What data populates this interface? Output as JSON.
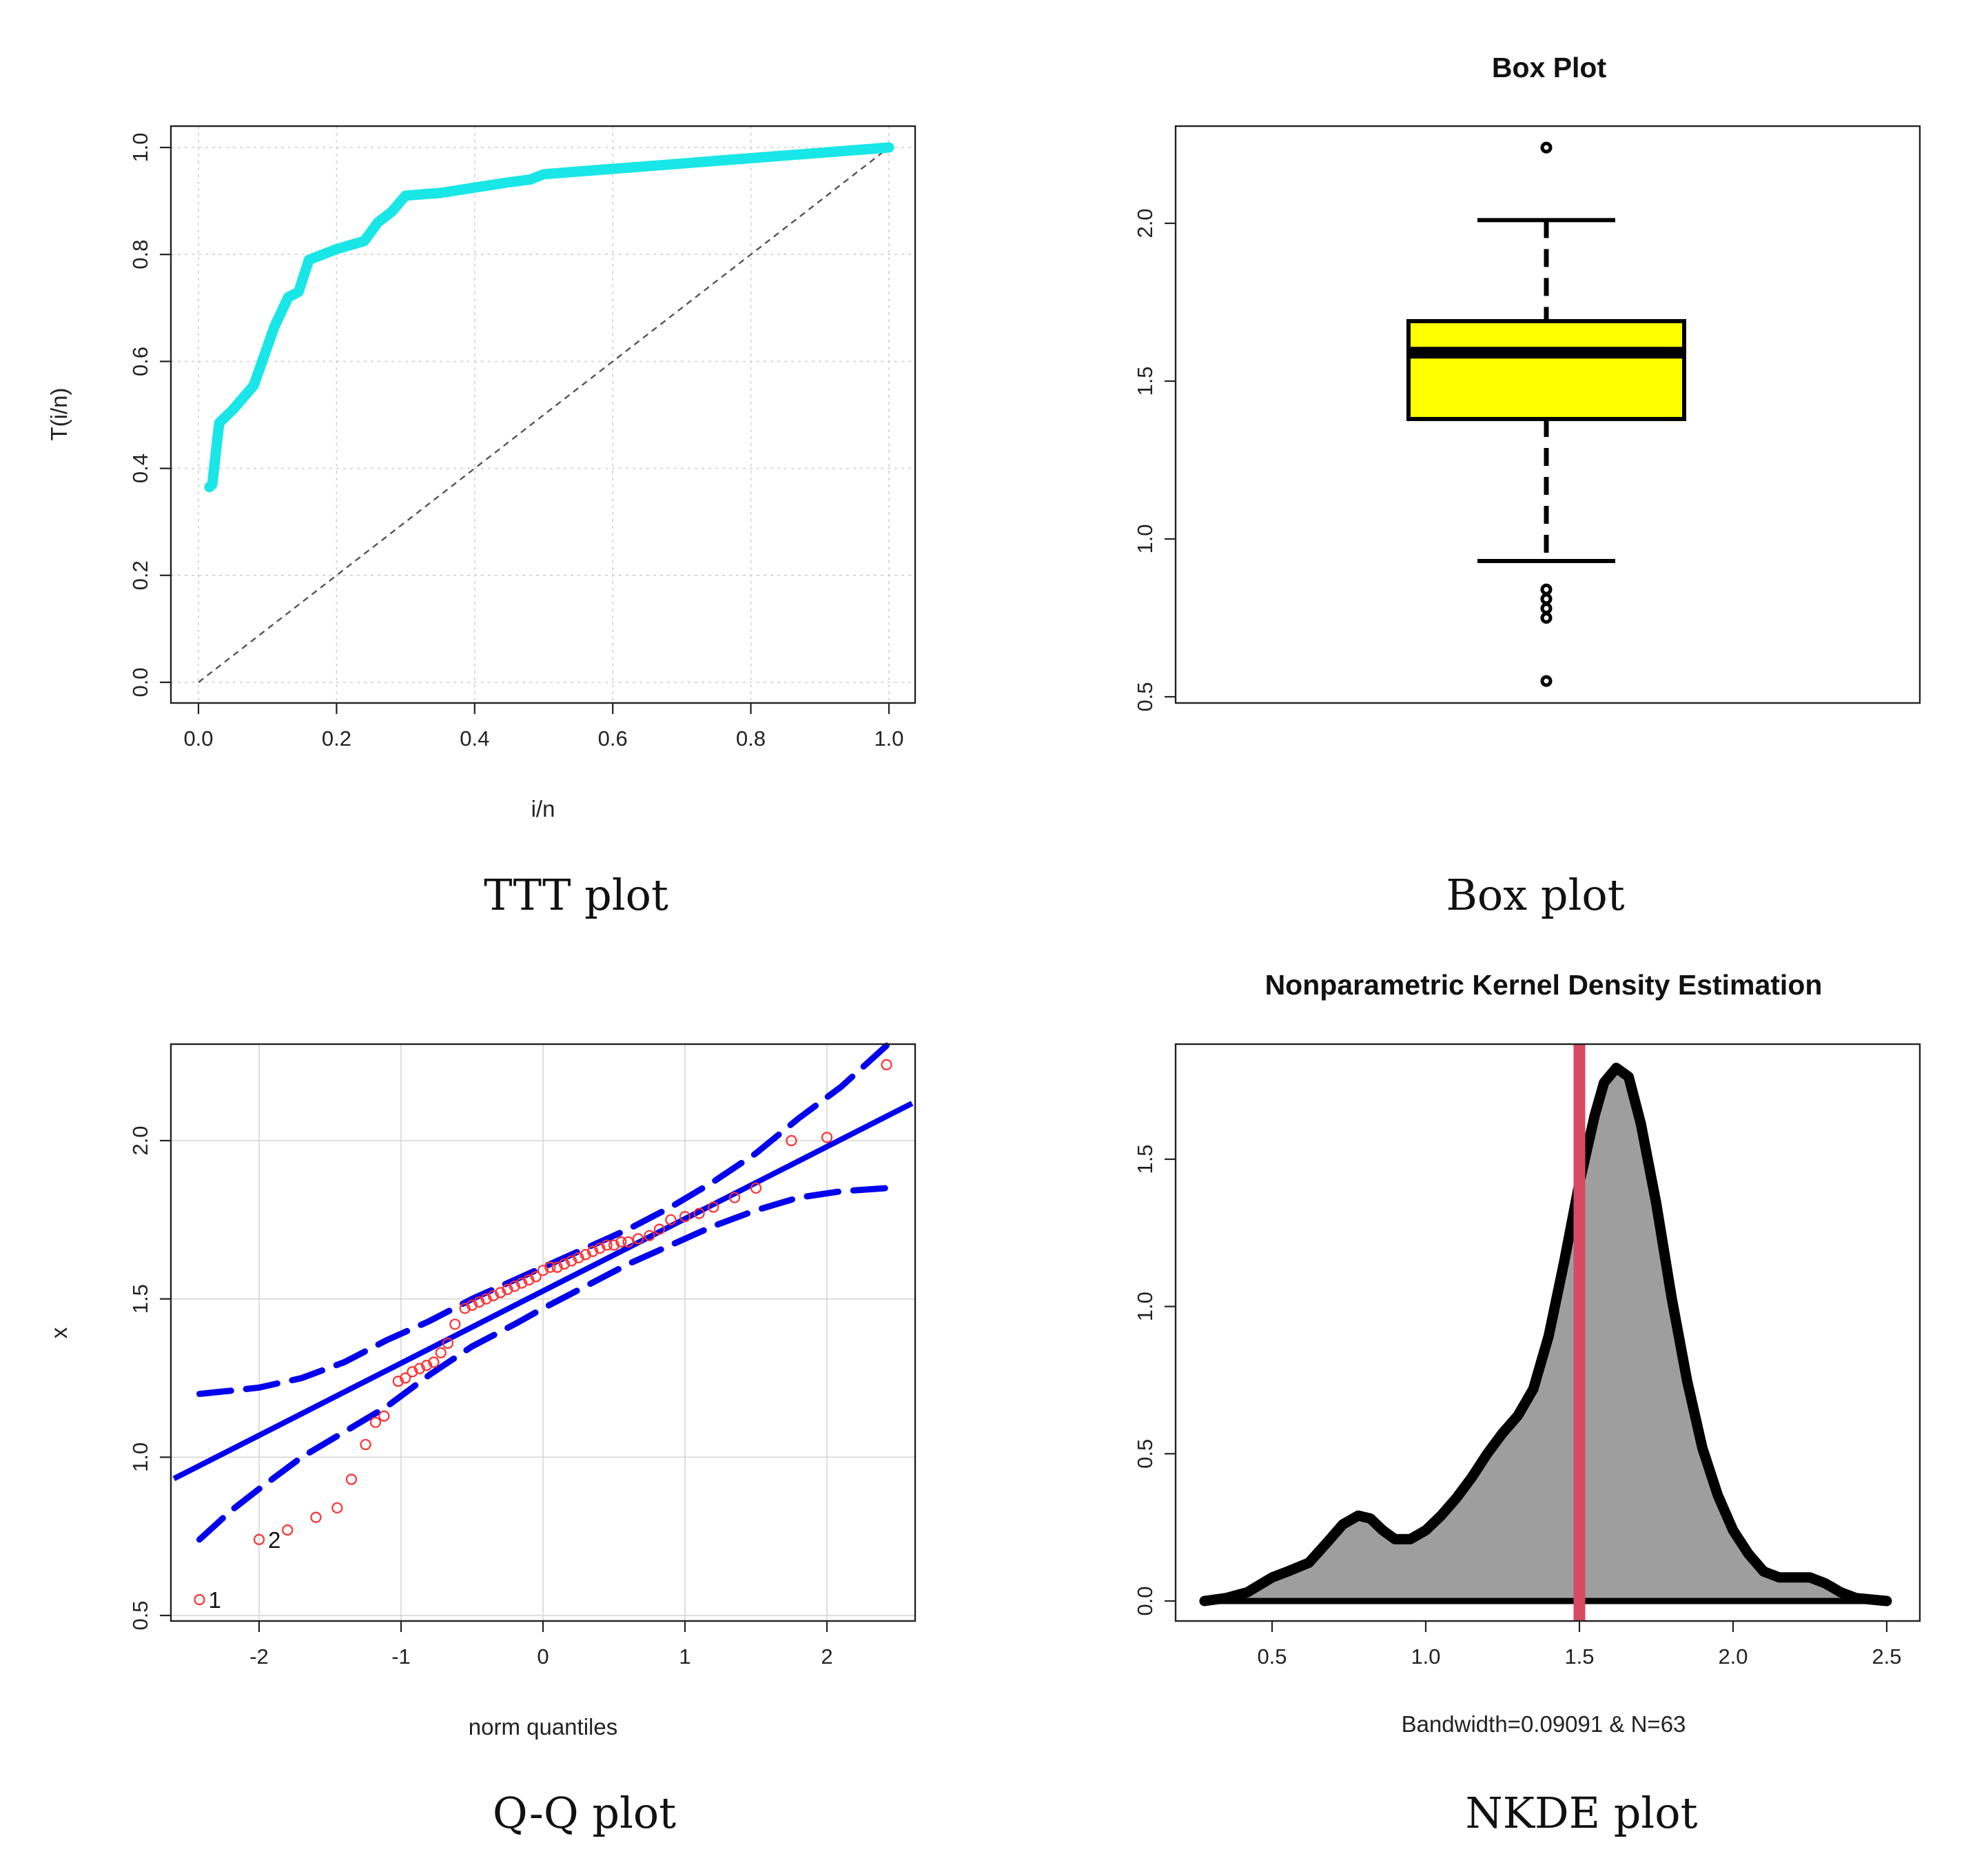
{
  "chart_data": [
    {
      "id": "ttt",
      "type": "line",
      "caption": "TTT plot",
      "title": "",
      "xlabel": "i/n",
      "ylabel": "T(i/n)",
      "xlim": [
        0,
        1
      ],
      "ylim": [
        0,
        1
      ],
      "xticks": [
        "0.0",
        "0.2",
        "0.4",
        "0.6",
        "0.8",
        "1.0"
      ],
      "yticks": [
        "0.0",
        "0.2",
        "0.4",
        "0.6",
        "0.8",
        "1.0"
      ],
      "grid": true,
      "line_color": "#19e6e6",
      "reference_line": {
        "from": [
          0,
          0
        ],
        "to": [
          1,
          1
        ],
        "style": "dashed"
      },
      "series": [
        {
          "name": "TTT",
          "x": [
            0.016,
            0.02,
            0.03,
            0.05,
            0.08,
            0.11,
            0.13,
            0.145,
            0.16,
            0.2,
            0.24,
            0.26,
            0.28,
            0.3,
            0.35,
            0.4,
            0.45,
            0.48,
            0.5,
            0.55,
            0.6,
            0.65,
            0.7,
            0.75,
            0.8,
            0.85,
            0.9,
            0.95,
            1.0
          ],
          "y": [
            0.365,
            0.37,
            0.485,
            0.51,
            0.555,
            0.665,
            0.72,
            0.73,
            0.79,
            0.81,
            0.825,
            0.86,
            0.88,
            0.91,
            0.915,
            0.925,
            0.935,
            0.94,
            0.95,
            0.955,
            0.96,
            0.965,
            0.97,
            0.975,
            0.98,
            0.985,
            0.99,
            0.995,
            1.0
          ]
        }
      ]
    },
    {
      "id": "box",
      "type": "box",
      "caption": "Box plot",
      "title": "Box Plot",
      "xlabel": "",
      "ylabel": "",
      "ylim": [
        0.5,
        2.3
      ],
      "yticks": [
        "0.5",
        "1.0",
        "1.5",
        "2.0"
      ],
      "grid": false,
      "fill_color": "#ffff00",
      "stats": {
        "lower_whisker": 0.93,
        "q1": 1.38,
        "median": 1.59,
        "q3": 1.69,
        "upper_whisker": 2.01
      },
      "outliers": [
        2.24,
        0.84,
        0.81,
        0.78,
        0.75,
        0.55
      ]
    },
    {
      "id": "qq",
      "type": "scatter",
      "caption": "Q-Q plot",
      "title": "",
      "xlabel": "norm quantiles",
      "ylabel": "x",
      "xlim": [
        -2.6,
        2.6
      ],
      "ylim": [
        0.5,
        2.3
      ],
      "xticks": [
        "-2",
        "-1",
        "0",
        "1",
        "2"
      ],
      "yticks": [
        "0.5",
        "1.0",
        "1.5",
        "2.0"
      ],
      "grid": true,
      "point_color": "#ff3030",
      "line_color": "#0000ee",
      "reference_line": {
        "intercept": 1.525,
        "slope": 0.228
      },
      "upper_band": {
        "x": [
          -2.42,
          -2.2,
          -2.0,
          -1.7,
          -1.4,
          -1.1,
          -0.8,
          -0.5,
          -0.2,
          0.0,
          0.3,
          0.6,
          0.9,
          1.2,
          1.5,
          1.8,
          2.1,
          2.42
        ],
        "y": [
          1.2,
          1.21,
          1.22,
          1.25,
          1.3,
          1.37,
          1.43,
          1.5,
          1.56,
          1.6,
          1.66,
          1.72,
          1.79,
          1.87,
          1.96,
          2.07,
          2.17,
          2.3
        ]
      },
      "lower_band": {
        "x": [
          -2.42,
          -2.2,
          -2.0,
          -1.7,
          -1.4,
          -1.1,
          -0.8,
          -0.5,
          -0.2,
          0.0,
          0.3,
          0.6,
          0.9,
          1.2,
          1.5,
          1.8,
          2.1,
          2.42
        ],
        "y": [
          0.74,
          0.83,
          0.9,
          1.0,
          1.08,
          1.16,
          1.26,
          1.35,
          1.42,
          1.47,
          1.54,
          1.61,
          1.67,
          1.73,
          1.78,
          1.82,
          1.84,
          1.85
        ]
      },
      "points": {
        "x": [
          -2.42,
          -2.0,
          -1.8,
          -1.6,
          -1.45,
          -1.35,
          -1.25,
          -1.18,
          -1.12,
          -1.02,
          -0.97,
          -0.92,
          -0.87,
          -0.82,
          -0.77,
          -0.72,
          -0.67,
          -0.62,
          -0.55,
          -0.5,
          -0.45,
          -0.4,
          -0.35,
          -0.3,
          -0.25,
          -0.2,
          -0.15,
          -0.1,
          -0.05,
          0.0,
          0.05,
          0.1,
          0.15,
          0.2,
          0.25,
          0.3,
          0.35,
          0.4,
          0.45,
          0.5,
          0.55,
          0.6,
          0.67,
          0.75,
          0.82,
          0.9,
          1.0,
          1.1,
          1.2,
          1.35,
          1.5,
          1.75,
          2.0,
          2.42
        ],
        "y": [
          0.55,
          0.74,
          0.77,
          0.81,
          0.84,
          0.93,
          1.04,
          1.11,
          1.13,
          1.24,
          1.25,
          1.27,
          1.28,
          1.29,
          1.3,
          1.33,
          1.36,
          1.42,
          1.47,
          1.48,
          1.49,
          1.5,
          1.51,
          1.52,
          1.53,
          1.54,
          1.55,
          1.56,
          1.57,
          1.59,
          1.6,
          1.6,
          1.61,
          1.62,
          1.63,
          1.64,
          1.65,
          1.66,
          1.67,
          1.67,
          1.68,
          1.68,
          1.69,
          1.7,
          1.72,
          1.75,
          1.76,
          1.77,
          1.79,
          1.82,
          1.85,
          2.0,
          2.01,
          2.24
        ]
      },
      "point_labels": [
        {
          "text": "1",
          "x": -2.42,
          "y": 0.55
        },
        {
          "text": "2",
          "x": -2.0,
          "y": 0.74
        }
      ]
    },
    {
      "id": "nkde",
      "type": "area",
      "caption": "NKDE plot",
      "title": "Nonparametric Kernel Density Estimation",
      "xlabel": "Bandwidth=0.09091 & N=63",
      "ylabel": "",
      "xlim": [
        0.24,
        2.56
      ],
      "ylim": [
        -0.07,
        1.9
      ],
      "xticks": [
        "0.5",
        "1.0",
        "1.5",
        "2.0",
        "2.5"
      ],
      "yticks": [
        "0.0",
        "0.5",
        "1.0",
        "1.5"
      ],
      "grid": false,
      "fill_color": "#9e9e9e",
      "vline": {
        "x": 1.5,
        "color": "#d84a64"
      },
      "series": [
        {
          "name": "density",
          "x": [
            0.28,
            0.35,
            0.42,
            0.5,
            0.55,
            0.62,
            0.68,
            0.73,
            0.78,
            0.82,
            0.86,
            0.9,
            0.95,
            1.0,
            1.05,
            1.1,
            1.15,
            1.2,
            1.25,
            1.3,
            1.35,
            1.4,
            1.45,
            1.5,
            1.55,
            1.58,
            1.62,
            1.66,
            1.7,
            1.75,
            1.8,
            1.85,
            1.9,
            1.95,
            2.0,
            2.05,
            2.1,
            2.15,
            2.2,
            2.25,
            2.3,
            2.35,
            2.4,
            2.45,
            2.5
          ],
          "y": [
            0.0,
            0.01,
            0.03,
            0.08,
            0.1,
            0.13,
            0.2,
            0.26,
            0.29,
            0.28,
            0.24,
            0.21,
            0.21,
            0.24,
            0.29,
            0.35,
            0.42,
            0.5,
            0.57,
            0.63,
            0.72,
            0.9,
            1.15,
            1.42,
            1.65,
            1.76,
            1.81,
            1.78,
            1.62,
            1.35,
            1.03,
            0.75,
            0.52,
            0.36,
            0.24,
            0.16,
            0.1,
            0.08,
            0.08,
            0.08,
            0.06,
            0.03,
            0.01,
            0.005,
            0.0
          ]
        }
      ]
    }
  ]
}
